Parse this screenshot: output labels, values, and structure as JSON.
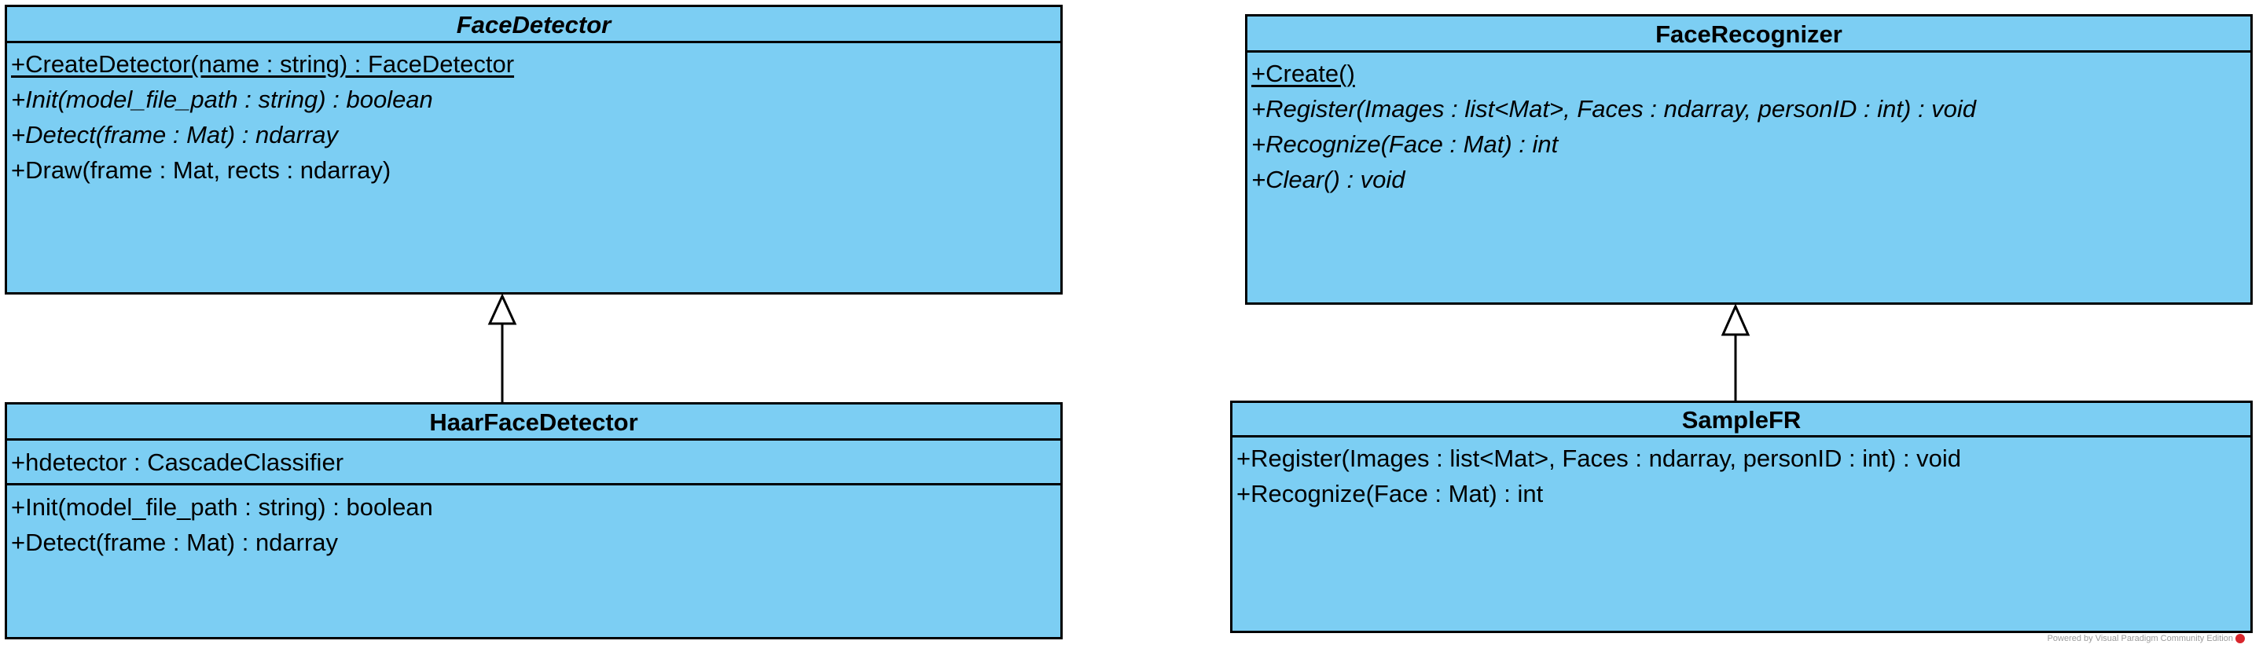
{
  "classes": {
    "face_detector": {
      "name": "FaceDetector",
      "operations": [
        "+CreateDetector(name : string) : FaceDetector",
        "+Init(model_file_path : string) : boolean",
        "+Detect(frame : Mat) : ndarray",
        "+Draw(frame : Mat, rects : ndarray)"
      ]
    },
    "haar_face_detector": {
      "name": "HaarFaceDetector",
      "attributes": [
        "+hdetector : CascadeClassifier"
      ],
      "operations": [
        "+Init(model_file_path : string) : boolean",
        "+Detect(frame : Mat) : ndarray"
      ]
    },
    "face_recognizer": {
      "name": "FaceRecognizer",
      "operations": [
        "+Create()",
        "+Register(Images : list<Mat>, Faces : ndarray, personID : int) : void",
        "+Recognize(Face : Mat) : int",
        "+Clear() : void"
      ]
    },
    "sample_fr": {
      "name": "SampleFR",
      "operations": [
        "+Register(Images : list<Mat>, Faces : ndarray, personID : int) : void",
        "+Recognize(Face : Mat) : int"
      ]
    }
  },
  "footer": {
    "watermark": "Powered by Visual Paradigm Community Edition"
  },
  "colors": {
    "class_fill": "#7ccef3",
    "stroke": "#000000"
  }
}
